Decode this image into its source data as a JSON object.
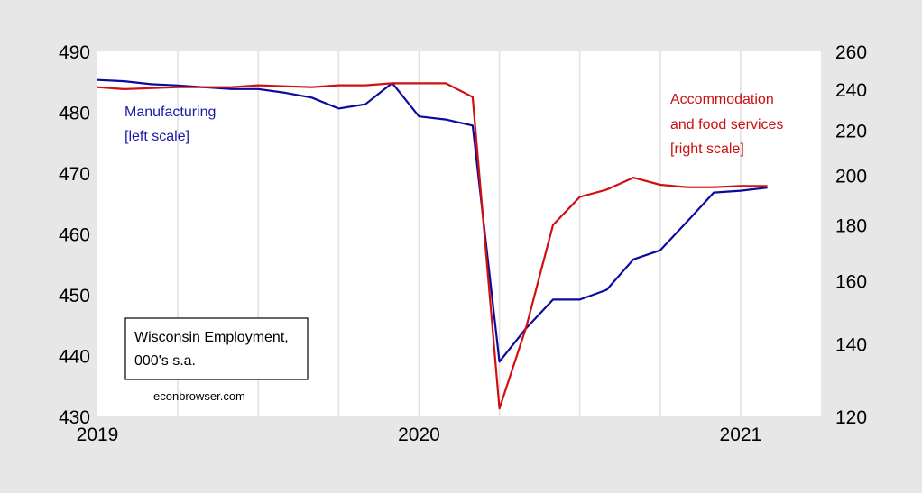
{
  "chart_data": {
    "type": "line",
    "title": "",
    "x": [
      "2019-01",
      "2019-02",
      "2019-03",
      "2019-04",
      "2019-05",
      "2019-06",
      "2019-07",
      "2019-08",
      "2019-09",
      "2019-10",
      "2019-11",
      "2019-12",
      "2020-01",
      "2020-02",
      "2020-03",
      "2020-04",
      "2020-05",
      "2020-06",
      "2020-07",
      "2020-08",
      "2020-09",
      "2020-10",
      "2020-11",
      "2020-12",
      "2021-01",
      "2021-02"
    ],
    "xticks": [
      "2019",
      "2020",
      "2021"
    ],
    "xlim": [
      "2019-01",
      "2021-04"
    ],
    "left_axis": {
      "scale": "linear",
      "ylim": [
        430,
        490
      ],
      "ticks": [
        "430",
        "440",
        "450",
        "460",
        "470",
        "480",
        "490"
      ]
    },
    "right_axis": {
      "scale": "log",
      "ylim": [
        120,
        260
      ],
      "ticks": [
        "120",
        "140",
        "160",
        "180",
        "200",
        "220",
        "240",
        "260"
      ]
    },
    "grid": "vertical",
    "series": [
      {
        "name": "Manufacturing",
        "axis": "left",
        "color": "#0a0aa0",
        "values": [
          485.3,
          485.1,
          484.6,
          484.4,
          484.1,
          483.8,
          483.8,
          483.2,
          482.4,
          480.6,
          481.3,
          484.8,
          479.3,
          478.8,
          477.8,
          439.0,
          444.5,
          449.2,
          449.2,
          450.8,
          455.8,
          457.3,
          462.0,
          466.8,
          467.1,
          467.6
        ]
      },
      {
        "name": "Accommodation and food services",
        "axis": "right",
        "color": "#d01010",
        "values": [
          241.0,
          240.0,
          240.5,
          241.0,
          241.0,
          241.0,
          242.0,
          241.5,
          241.0,
          242.0,
          242.0,
          243.0,
          243.0,
          243.0,
          236.0,
          122.0,
          145.0,
          180.0,
          191.0,
          194.0,
          199.0,
          196.0,
          195.0,
          195.0,
          195.5,
          195.5
        ]
      }
    ],
    "annotations": {
      "left_label": [
        "Manufacturing",
        "[left scale]"
      ],
      "right_label": [
        "Accommodation",
        "and food services",
        "[right scale]"
      ],
      "box": [
        "Wisconsin Employment,",
        "000's s.a."
      ],
      "credit": "econbrowser.com"
    }
  }
}
